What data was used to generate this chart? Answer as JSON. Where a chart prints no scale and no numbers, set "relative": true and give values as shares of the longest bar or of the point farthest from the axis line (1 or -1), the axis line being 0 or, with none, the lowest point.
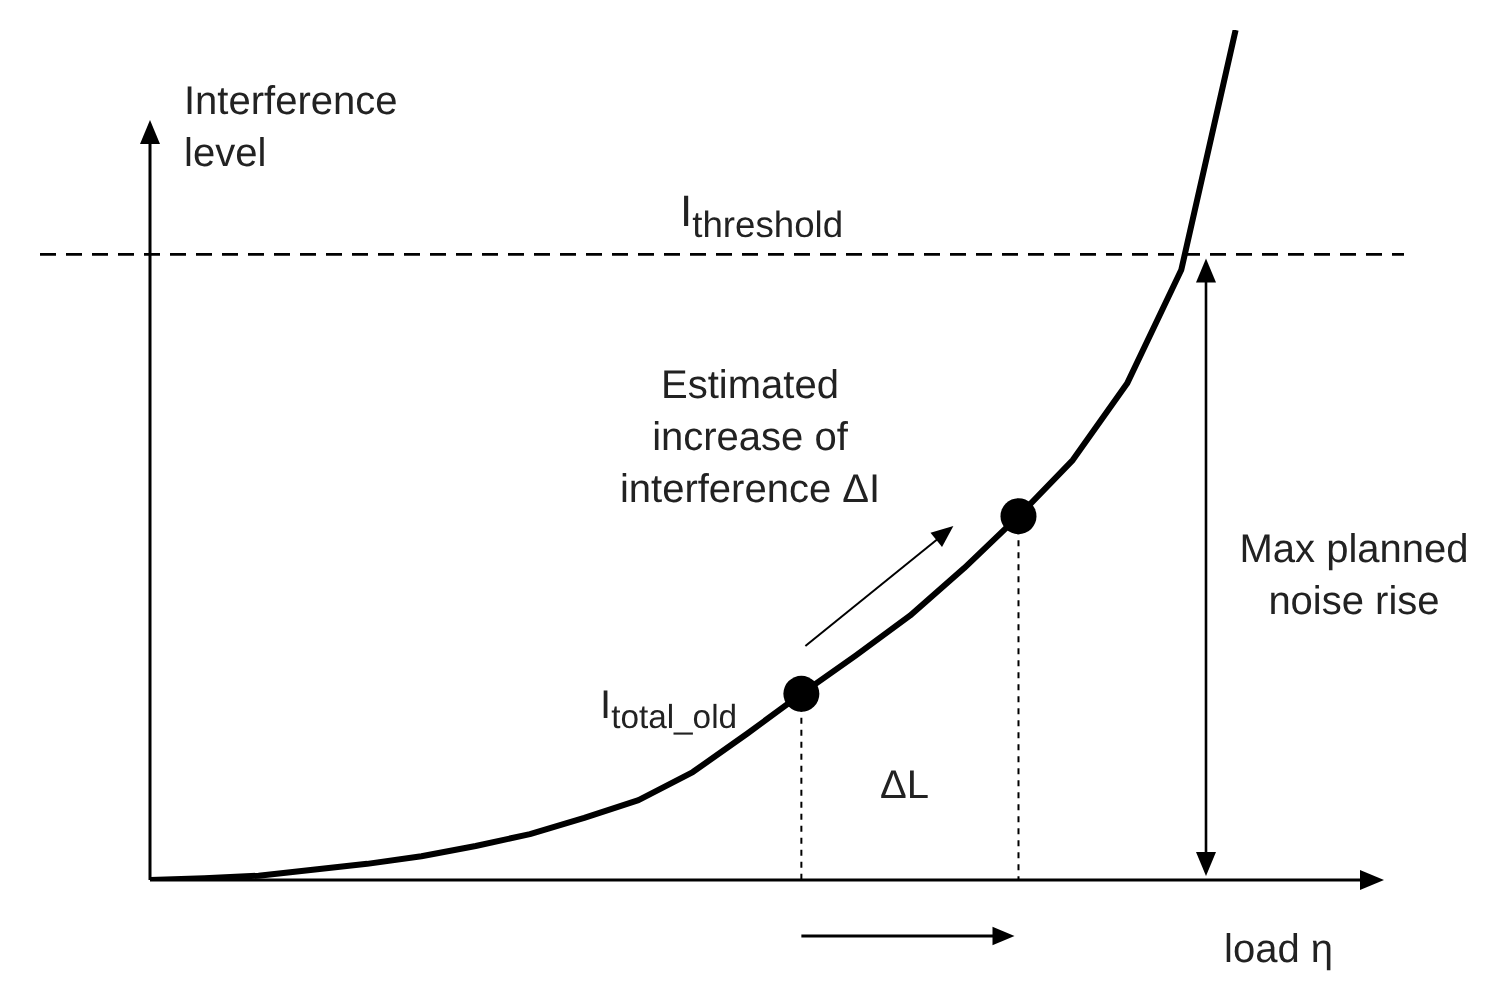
{
  "chart_data": {
    "type": "line",
    "relative": true,
    "xlabel": "load η",
    "ylabel": "Interference level",
    "legend": false,
    "categories": [
      null,
      null,
      null,
      null,
      null,
      null,
      null,
      null,
      null,
      null,
      null,
      null,
      null,
      null,
      null,
      null,
      null,
      null,
      null,
      null,
      null
    ],
    "series": [
      {
        "color": "#000000",
        "marker": "none",
        "values": [
          0,
          0.002,
          0.005,
          0.012,
          0.019,
          0.028,
          0.04,
          0.054,
          0.073,
          0.094,
          0.127,
          0.172,
          0.219,
          0.264,
          0.311,
          0.367,
          0.428,
          0.494,
          0.584,
          0.718,
          1
        ]
      }
    ],
    "ref_lines": [
      {
        "axis": "y",
        "value": 0.736,
        "label": "I$_{threshold}$",
        "color": "#000000",
        "line_style": "dashed"
      }
    ],
    "annotations": [
      "Estimated increase of interference ΔI",
      "I$_{total_old}$",
      "ΔL",
      "Max planned noise rise"
    ]
  }
}
